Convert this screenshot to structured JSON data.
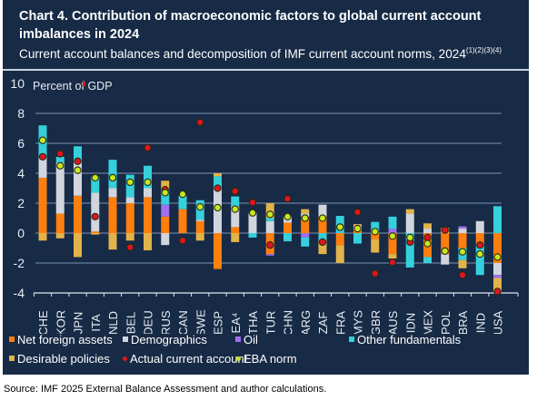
{
  "header": {
    "title": "Chart 4. Contribution of macroeconomic factors to global current account imbalances in 2024",
    "subtitle": "Current account balances and decomposition of IMF current account norms, 2024",
    "subtitle_notes": "(1)(2)(3)(4)"
  },
  "source": "Source: IMF 2025 External Balance Assessment and author calculations.",
  "chart_data": {
    "type": "bar",
    "stacked": true,
    "title": "Chart 4. Contribution of macroeconomic factors to global current account imbalances in 2024",
    "ylabel": "Percent of GDP",
    "xlabel": "",
    "ylim": [
      -4,
      10
    ],
    "yticks": [
      10,
      8,
      6,
      4,
      2,
      0,
      -2,
      -4
    ],
    "grid": true,
    "legend_position": "bottom",
    "categories": [
      "CHE",
      "KOR",
      "JPN",
      "ITA",
      "NLD",
      "BEL",
      "DEU",
      "RUS",
      "CAN",
      "SWE",
      "ESP",
      "EA4",
      "THA",
      "TUR",
      "CHN",
      "ARG",
      "ZAF",
      "FRA",
      "MYS",
      "GBR",
      "AUS",
      "IDN",
      "MEX",
      "POL",
      "BRA",
      "IND",
      "USA"
    ],
    "category_labels": [
      "CHE",
      "KOR",
      "JPN",
      "ITA",
      "NLD",
      "BEL",
      "DEU",
      "RUS",
      "CAN",
      "SWE",
      "ESP",
      "EA⁴",
      "THA",
      "TUR",
      "CHN",
      "ARG",
      "ZAF",
      "FRA",
      "MYS",
      "GBR",
      "AUS",
      "IDN",
      "MEX",
      "POL",
      "BRA",
      "IND",
      "USA"
    ],
    "series": [
      {
        "name": "Net foreign assets",
        "color": "#ff7f0e",
        "values": [
          3.7,
          1.3,
          2.5,
          0.1,
          2.4,
          2.0,
          2.4,
          1.1,
          1.6,
          0.8,
          -2.4,
          0.4,
          0.0,
          -1.4,
          0.7,
          1.1,
          1.1,
          -0.8,
          0.2,
          -0.4,
          -1.4,
          0.0,
          -1.6,
          -1.4,
          -1.0,
          -0.7,
          -2.0
        ]
      },
      {
        "name": "Demographics",
        "color": "#d0d5de",
        "values": [
          1.3,
          3.4,
          2.2,
          2.6,
          0.6,
          0.4,
          0.6,
          -0.8,
          0.0,
          0.1,
          3.1,
          1.4,
          1.35,
          0.8,
          0.4,
          0.2,
          0.8,
          0.0,
          0.3,
          0.0,
          0.0,
          1.3,
          0.3,
          -0.7,
          0.3,
          0.8,
          -0.8
        ]
      },
      {
        "name": "Oil",
        "color": "#a070f0",
        "values": [
          0.0,
          0.0,
          0.0,
          0.0,
          0.0,
          0.0,
          0.0,
          0.8,
          0.0,
          0.0,
          0.0,
          0.0,
          0.0,
          -0.1,
          0.0,
          -0.3,
          0.0,
          0.0,
          0.0,
          0.0,
          0.3,
          0.0,
          0.0,
          0.0,
          0.15,
          0.0,
          -0.2
        ]
      },
      {
        "name": "Other fundamentals",
        "color": "#35d0dc",
        "values": [
          2.2,
          0.4,
          1.1,
          1.1,
          1.9,
          1.5,
          1.5,
          1.1,
          0.9,
          1.3,
          0.7,
          0.65,
          -0.3,
          0.2,
          -0.55,
          -0.6,
          -0.5,
          1.15,
          -0.7,
          0.75,
          0.8,
          -2.3,
          -0.4,
          0.0,
          -0.8,
          -2.1,
          1.8
        ]
      },
      {
        "name": "Desirable policies",
        "color": "#e2b34a",
        "values": [
          -0.5,
          -0.35,
          -1.6,
          -0.1,
          -1.1,
          -0.5,
          -1.15,
          0.5,
          0.0,
          -0.5,
          0.2,
          -0.6,
          0.0,
          1.0,
          0.0,
          0.3,
          -0.9,
          -1.2,
          0.1,
          -0.9,
          -0.3,
          0.3,
          0.35,
          0.35,
          -0.55,
          0.0,
          -0.9
        ]
      },
      {
        "name": "Actual current account",
        "color": "#e0141e",
        "marker": "dot",
        "values": [
          5.1,
          5.3,
          4.8,
          1.1,
          3.7,
          -0.95,
          5.7,
          2.9,
          -0.5,
          7.4,
          3.0,
          2.8,
          2.05,
          -0.8,
          2.3,
          1.0,
          -0.6,
          0.4,
          1.4,
          -2.7,
          -1.95,
          -0.6,
          -0.3,
          0.2,
          -2.8,
          -0.8,
          -3.9
        ]
      },
      {
        "name": "EBA norm",
        "color": "#c8e622",
        "marker": "dot",
        "values": [
          6.2,
          4.5,
          4.2,
          3.7,
          3.7,
          3.4,
          3.4,
          2.7,
          2.6,
          1.75,
          1.7,
          1.6,
          1.35,
          1.25,
          1.1,
          1.0,
          1.0,
          0.4,
          0.3,
          0.1,
          -0.2,
          -0.3,
          -0.7,
          -1.2,
          -1.25,
          -1.4,
          -1.6
        ]
      }
    ]
  },
  "legend": {
    "row1": [
      {
        "label": "Net foreign assets",
        "color": "#ff7f0e",
        "kind": "square"
      },
      {
        "label": "Demographics",
        "color": "#d0d5de",
        "kind": "square"
      },
      {
        "label": "Oil",
        "color": "#a070f0",
        "kind": "square"
      },
      {
        "label": "Other fundamentals",
        "color": "#35d0dc",
        "kind": "square"
      }
    ],
    "row2": [
      {
        "label": "Desirable policies",
        "color": "#e2b34a",
        "kind": "square"
      },
      {
        "label": "Actual current account",
        "color": "#e0141e",
        "kind": "dot"
      },
      {
        "label": "EBA norm",
        "color": "#c8e622",
        "kind": "dot"
      }
    ]
  }
}
